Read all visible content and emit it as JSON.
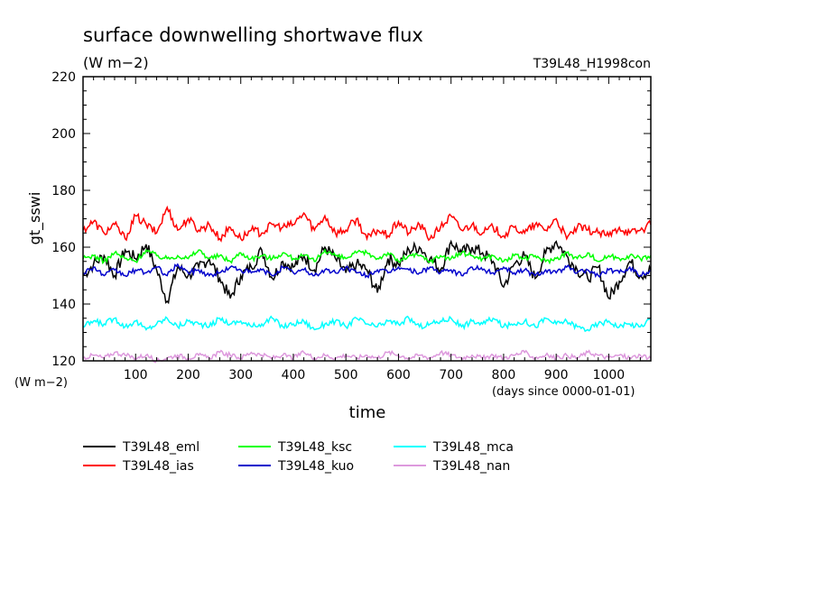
{
  "chart_data": {
    "type": "line",
    "title": "surface downwelling shortwave flux",
    "title_units": "(W m−2)",
    "run_label": "T39L48_H1998con",
    "ylabel": "gt_sswi",
    "yunits": "(W m−2)",
    "xlabel": "time",
    "xunits": "(days since 0000-01-01)",
    "xlim": [
      0,
      1080
    ],
    "ylim": [
      120,
      220
    ],
    "xticks": [
      100,
      200,
      300,
      400,
      500,
      600,
      700,
      800,
      900,
      1000
    ],
    "xtick_labels": [
      "100",
      "200",
      "300",
      "400",
      "500",
      "600",
      "700",
      "800",
      "900",
      "1000"
    ],
    "yticks": [
      120,
      140,
      160,
      180,
      200,
      220
    ],
    "ytick_labels": [
      "120",
      "140",
      "160",
      "180",
      "200",
      "220"
    ],
    "grid": false,
    "legend_position": "bottom",
    "x": [
      0,
      20,
      40,
      60,
      80,
      100,
      120,
      140,
      160,
      180,
      200,
      220,
      240,
      260,
      280,
      300,
      320,
      340,
      360,
      380,
      400,
      420,
      440,
      460,
      480,
      500,
      520,
      540,
      560,
      580,
      600,
      620,
      640,
      660,
      680,
      700,
      720,
      740,
      760,
      780,
      800,
      820,
      840,
      860,
      880,
      900,
      920,
      940,
      960,
      980,
      1000,
      1020,
      1040,
      1060,
      1080
    ],
    "series": [
      {
        "name": "T39L48_eml",
        "color": "#000000",
        "values": [
          150,
          154,
          157,
          150,
          159,
          156,
          161,
          152,
          141,
          153,
          150,
          153,
          156,
          149,
          142,
          150,
          153,
          159,
          149,
          155,
          153,
          157,
          152,
          160,
          156,
          151,
          154,
          152,
          144,
          156,
          154,
          159,
          160,
          156,
          152,
          162,
          158,
          160,
          158,
          155,
          146,
          154,
          157,
          149,
          158,
          162,
          157,
          152,
          149,
          153,
          142,
          148,
          155,
          150,
          152
        ]
      },
      {
        "name": "T39L48_ias",
        "color": "#ff0000",
        "values": [
          166,
          169,
          165,
          168,
          163,
          171,
          168,
          165,
          174,
          166,
          170,
          166,
          168,
          163,
          167,
          163,
          166,
          165,
          168,
          167,
          168,
          172,
          166,
          171,
          165,
          166,
          170,
          163,
          166,
          164,
          169,
          165,
          168,
          163,
          167,
          171,
          166,
          168,
          165,
          167,
          164,
          167,
          165,
          168,
          166,
          170,
          163,
          167,
          166,
          165,
          164,
          167,
          165,
          166,
          168
        ]
      },
      {
        "name": "T39L48_ksc",
        "color": "#00ff00",
        "values": [
          156,
          157,
          155,
          158,
          156,
          155,
          159,
          157,
          156,
          157,
          156,
          159,
          156,
          157,
          155,
          158,
          156,
          157,
          156,
          158,
          156,
          157,
          155,
          159,
          157,
          156,
          158,
          158,
          156,
          158,
          155,
          157,
          157,
          155,
          157,
          156,
          158,
          157,
          156,
          157,
          155,
          157,
          156,
          157,
          155,
          156,
          158,
          156,
          158,
          155,
          157,
          156,
          157,
          156,
          157
        ]
      },
      {
        "name": "T39L48_kuo",
        "color": "#0000cc",
        "values": [
          151,
          153,
          150,
          152,
          150,
          152,
          151,
          153,
          150,
          154,
          151,
          152,
          150,
          151,
          153,
          152,
          151,
          152,
          150,
          153,
          151,
          152,
          150,
          152,
          151,
          153,
          151,
          150,
          152,
          151,
          153,
          152,
          151,
          153,
          151,
          152,
          150,
          153,
          152,
          151,
          153,
          151,
          152,
          150,
          152,
          151,
          153,
          151,
          152,
          150,
          152,
          151,
          153,
          150,
          152
        ]
      },
      {
        "name": "T39L48_mca",
        "color": "#00ffff",
        "values": [
          132,
          134,
          133,
          135,
          132,
          134,
          131,
          133,
          135,
          132,
          134,
          133,
          132,
          135,
          133,
          134,
          132,
          133,
          135,
          132,
          133,
          134,
          131,
          133,
          134,
          132,
          135,
          133,
          132,
          134,
          133,
          135,
          132,
          133,
          134,
          135,
          132,
          134,
          133,
          135,
          132,
          133,
          134,
          132,
          135,
          133,
          134,
          132,
          131,
          133,
          134,
          132,
          133,
          132,
          135
        ]
      },
      {
        "name": "T39L48_nan",
        "color": "#dd99dd",
        "values": [
          121,
          122,
          121,
          123,
          122,
          121,
          122,
          120,
          121,
          122,
          121,
          122,
          121,
          123,
          122,
          121,
          123,
          122,
          121,
          122,
          121,
          123,
          121,
          122,
          121,
          122,
          121,
          122,
          121,
          123,
          122,
          121,
          122,
          121,
          123,
          122,
          121,
          122,
          121,
          122,
          121,
          122,
          123,
          121,
          122,
          121,
          122,
          121,
          123,
          122,
          121,
          122,
          121,
          122,
          121
        ]
      }
    ]
  }
}
